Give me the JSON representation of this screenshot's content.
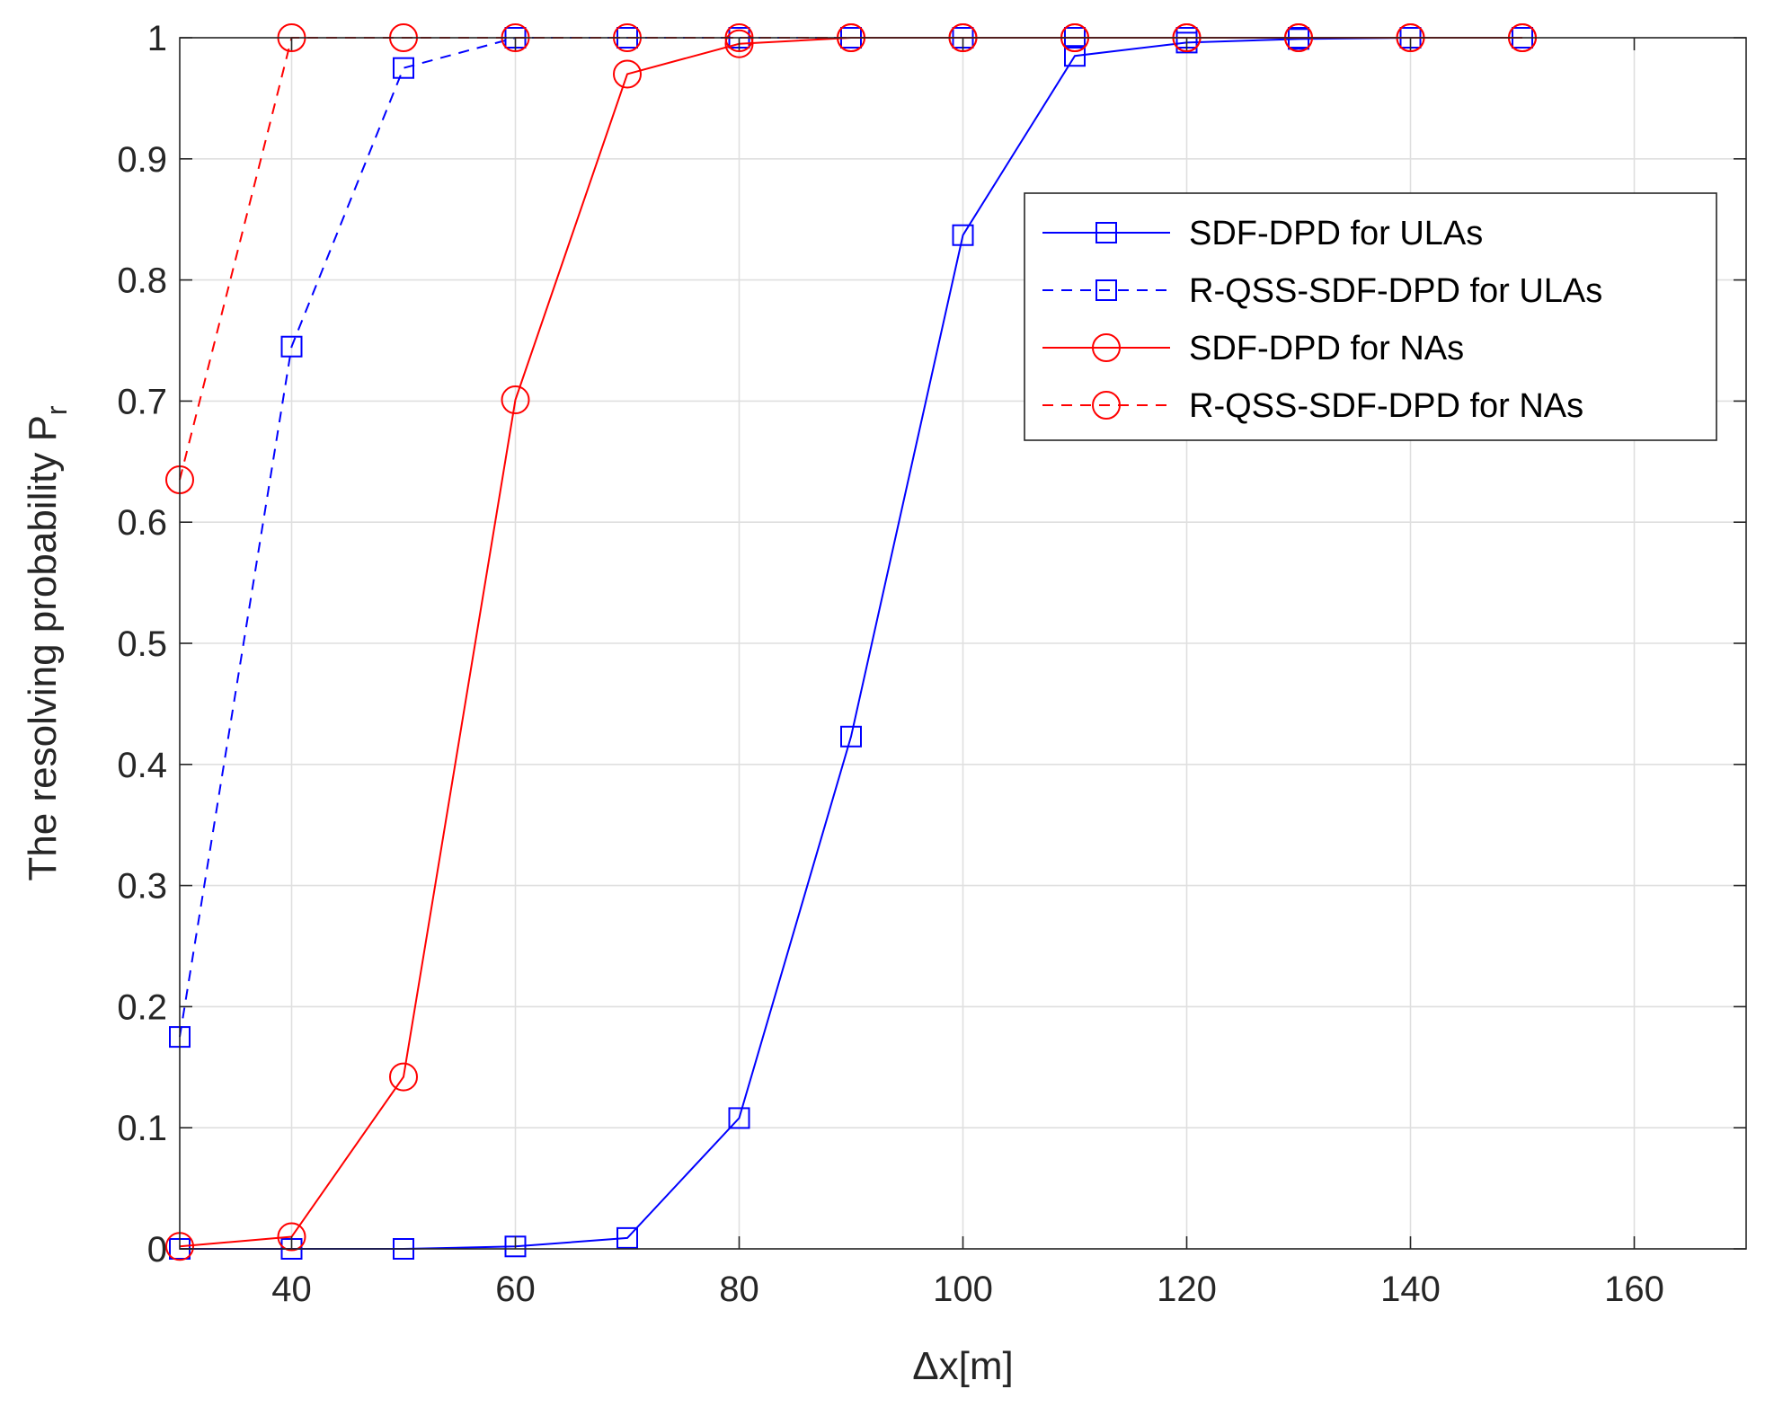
{
  "chart_data": {
    "type": "line",
    "xlabel": "Δx[m]",
    "ylabel": "The resolving probability P",
    "ylabel_subscript": "r",
    "xlim": [
      30,
      170
    ],
    "ylim": [
      0,
      1
    ],
    "xticks": [
      40,
      60,
      80,
      100,
      120,
      140,
      160
    ],
    "yticks": [
      0,
      0.1,
      0.2,
      0.3,
      0.4,
      0.5,
      0.6,
      0.7,
      0.8,
      0.9,
      1
    ],
    "ytick_labels": [
      "0",
      "0.1",
      "0.2",
      "0.3",
      "0.4",
      "0.5",
      "0.6",
      "0.7",
      "0.8",
      "0.9",
      "1"
    ],
    "grid": true,
    "legend_position": "upper-right",
    "x": [
      30,
      40,
      50,
      60,
      70,
      80,
      90,
      100,
      110,
      120,
      130,
      140,
      150
    ],
    "series": [
      {
        "name": "SDF-DPD for ULAs",
        "color": "#0000ff",
        "dash": "solid",
        "marker": "square",
        "values": [
          0.0,
          0.0,
          0.0,
          0.002,
          0.009,
          0.108,
          0.423,
          0.837,
          0.985,
          0.996,
          0.999,
          1.0,
          1.0
        ]
      },
      {
        "name": "R-QSS-SDF-DPD for ULAs",
        "color": "#0000ff",
        "dash": "dashed",
        "marker": "square",
        "values": [
          0.175,
          0.745,
          0.975,
          1.0,
          1.0,
          1.0,
          1.0,
          1.0,
          1.0,
          1.0,
          1.0,
          1.0,
          1.0
        ]
      },
      {
        "name": "SDF-DPD for NAs",
        "color": "#ff0000",
        "dash": "solid",
        "marker": "circle",
        "values": [
          0.002,
          0.01,
          0.142,
          0.701,
          0.97,
          0.995,
          1.0,
          1.0,
          1.0,
          1.0,
          1.0,
          1.0,
          1.0
        ]
      },
      {
        "name": "R-QSS-SDF-DPD for NAs",
        "color": "#ff0000",
        "dash": "dashed",
        "marker": "circle",
        "values": [
          0.635,
          1.0,
          1.0,
          1.0,
          1.0,
          1.0,
          1.0,
          1.0,
          1.0,
          1.0,
          1.0,
          1.0,
          1.0
        ]
      }
    ]
  }
}
